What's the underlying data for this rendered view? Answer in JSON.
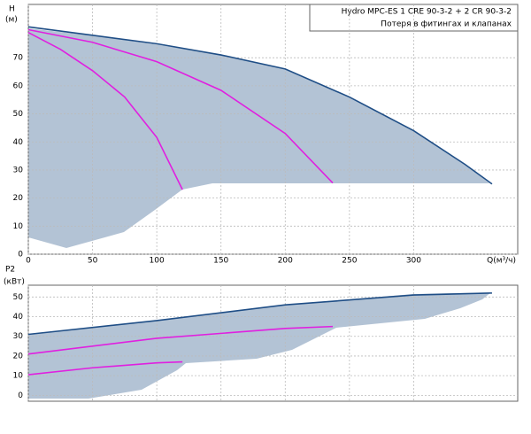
{
  "chart_data": [
    {
      "type": "line",
      "title": "Hydro MPC-ES 1 CRE 90-3-2  +  2 CR 90-3-2",
      "subtitle": "Потеря в фитингах и клапанах",
      "ylabel": "H",
      "yunit": "(м)",
      "xlabel": "Q(м³/ч)",
      "xlim": [
        0,
        381
      ],
      "xticks": [
        0,
        50,
        100,
        150,
        200,
        250,
        300
      ],
      "ylim": [
        0,
        89
      ],
      "yticks": [
        0,
        10,
        20,
        30,
        40,
        50,
        60,
        70
      ],
      "grid": true,
      "series": [
        {
          "color": "#1f4e86",
          "x": [
            0,
            50,
            100,
            150,
            200,
            250,
            300,
            340,
            361
          ],
          "values": [
            81,
            78,
            75,
            71,
            66,
            56,
            44,
            32,
            25
          ]
        },
        {
          "color": "#e020e0",
          "x": [
            0,
            50,
            100,
            150,
            200,
            237
          ],
          "values": [
            80,
            75.5,
            68.6,
            58.4,
            43,
            25.4
          ]
        },
        {
          "color": "#e020e0",
          "x": [
            0,
            25,
            50,
            75,
            100,
            120
          ],
          "values": [
            79,
            73,
            65.4,
            56,
            41.6,
            23
          ]
        }
      ]
    },
    {
      "type": "line",
      "ylabel": "P2",
      "yunit": "(кВт)",
      "xlim": [
        0,
        381
      ],
      "xticks": [
        0,
        50,
        100,
        150,
        200,
        250,
        300
      ],
      "ylim": [
        -3,
        56
      ],
      "yticks": [
        0,
        10,
        20,
        30,
        40,
        50
      ],
      "grid": true,
      "series": [
        {
          "color": "#1f4e86",
          "x": [
            0,
            100,
            200,
            300,
            361
          ],
          "values": [
            31,
            38,
            46,
            51,
            52
          ]
        },
        {
          "color": "#e020e0",
          "x": [
            0,
            100,
            200,
            237
          ],
          "values": [
            21,
            29,
            34,
            35
          ]
        },
        {
          "color": "#e020e0",
          "x": [
            0,
            50,
            100,
            120
          ],
          "values": [
            10.5,
            14,
            16.5,
            17
          ]
        }
      ]
    }
  ]
}
